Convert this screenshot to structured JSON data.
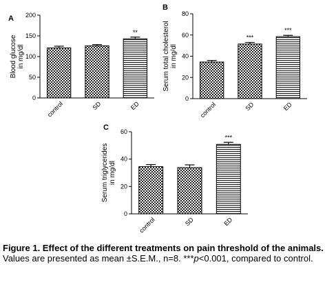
{
  "chart_data": [
    {
      "panel": "A",
      "type": "bar",
      "categories": [
        "control",
        "SD",
        "ED"
      ],
      "values": [
        121,
        126,
        143
      ],
      "errors": [
        4,
        3,
        4
      ],
      "annotations": [
        "",
        "",
        "**"
      ],
      "patterns": [
        "checker",
        "checker",
        "stripes"
      ],
      "ylabel": "Blood glucose in mg/dl",
      "ylim": [
        0,
        200
      ],
      "yticks": [
        0,
        50,
        100,
        150,
        200
      ],
      "grid": false
    },
    {
      "panel": "B",
      "type": "bar",
      "categories": [
        "control",
        "SD",
        "ED"
      ],
      "values": [
        34.5,
        51.5,
        58.5
      ],
      "errors": [
        1.5,
        1.5,
        1.2
      ],
      "annotations": [
        "",
        "***",
        "***"
      ],
      "patterns": [
        "checker",
        "checker",
        "stripes"
      ],
      "ylabel": "Serum total cholesterol in mg/dl",
      "ylim": [
        0,
        80
      ],
      "yticks": [
        0,
        20,
        40,
        60,
        80
      ],
      "grid": false
    },
    {
      "panel": "C",
      "type": "bar",
      "categories": [
        "control",
        "SD",
        "ED"
      ],
      "values": [
        34.5,
        33.8,
        50.8
      ],
      "errors": [
        1.5,
        2.0,
        1.5
      ],
      "annotations": [
        "",
        "",
        "***"
      ],
      "patterns": [
        "checker",
        "checker",
        "stripes"
      ],
      "ylabel": "Serum triglycerides in mg/dl",
      "ylim": [
        0,
        60
      ],
      "yticks": [
        0,
        20,
        40,
        60
      ],
      "grid": false
    }
  ],
  "caption": {
    "title": "Figure 1. Effect of the different treatments on pain threshold of the animals.",
    "body": "Values are presented as mean ±S.E.M., n=8. ***p<0.001, compared to control."
  }
}
